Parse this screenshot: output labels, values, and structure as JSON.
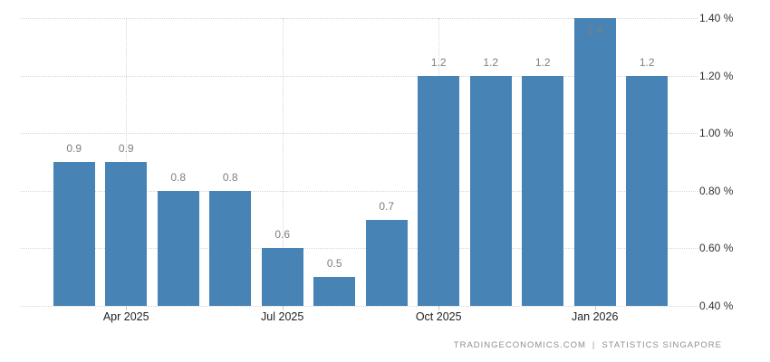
{
  "chart_data": {
    "type": "bar",
    "title": "",
    "xlabel": "",
    "ylabel": "",
    "values": [
      0.9,
      0.9,
      0.8,
      0.8,
      0.6,
      0.5,
      0.7,
      1.2,
      1.2,
      1.2,
      1.4,
      1.2
    ],
    "data_labels": [
      "0.9",
      "0.9",
      "0.8",
      "0.8",
      "0.6",
      "0.5",
      "0.7",
      "1.2",
      "1.2",
      "1.2",
      "1.4",
      "1.2"
    ],
    "x_ticks": [
      {
        "label": "Apr 2025",
        "bar_index": 1
      },
      {
        "label": "Jul 2025",
        "bar_index": 4
      },
      {
        "label": "Oct 2025",
        "bar_index": 7
      },
      {
        "label": "Jan 2026",
        "bar_index": 10
      }
    ],
    "y_ticks": [
      {
        "label": "1.40 %",
        "value": 1.4
      },
      {
        "label": "1.20 %",
        "value": 1.2
      },
      {
        "label": "1.00 %",
        "value": 1.0
      },
      {
        "label": "0.80 %",
        "value": 0.8
      },
      {
        "label": "0.60 %",
        "value": 0.6
      },
      {
        "label": "0.40 %",
        "value": 0.4
      }
    ],
    "ylim": [
      0.4,
      1.4
    ],
    "grid": true,
    "legend": "none",
    "y_axis_position": "right",
    "colors": {
      "bar": "#4783b4",
      "grid": "#d6d6d6",
      "data_label": "#7f7f7f",
      "y_tick_text": "#333333",
      "x_tick_text": "#222222",
      "footer_text": "#8f8f8f"
    }
  },
  "footer": {
    "source_primary": "TRADINGECONOMICS.COM",
    "separator": "|",
    "source_secondary": "STATISTICS  SINGAPORE"
  }
}
